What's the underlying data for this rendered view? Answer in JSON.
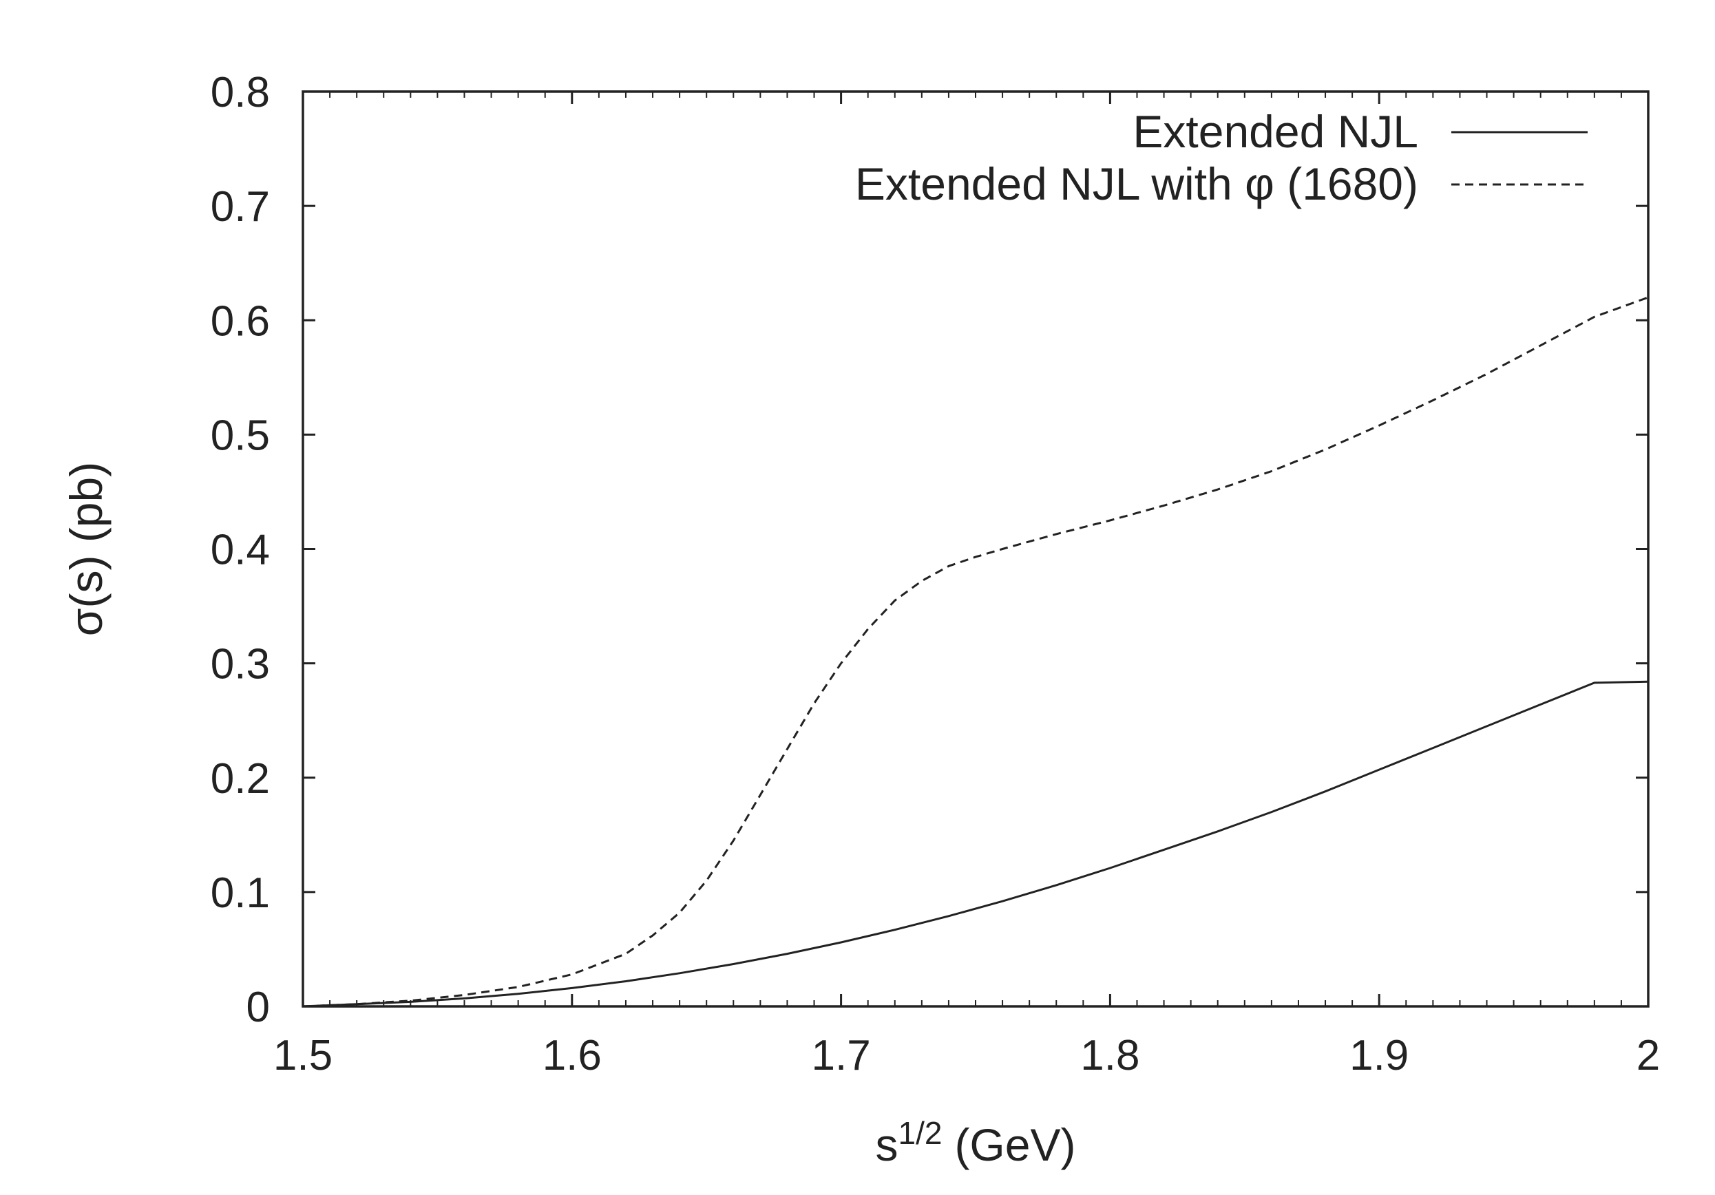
{
  "chart_data": {
    "type": "line",
    "title": "",
    "xlabel": "s",
    "xlabel_sup": "1/2",
    "xlabel_unit": "(GeV)",
    "ylabel": "σ(s) (pb)",
    "xlim": [
      1.5,
      2.0
    ],
    "ylim": [
      0,
      0.8
    ],
    "x_ticks": [
      1.5,
      1.6,
      1.7,
      1.8,
      1.9,
      2.0
    ],
    "x_tick_labels": [
      "1.5",
      "1.6",
      "1.7",
      "1.8",
      "1.9",
      "2"
    ],
    "y_ticks": [
      0,
      0.1,
      0.2,
      0.3,
      0.4,
      0.5,
      0.6,
      0.7,
      0.8
    ],
    "y_tick_labels": [
      "0",
      "0.1",
      "0.2",
      "0.3",
      "0.4",
      "0.5",
      "0.6",
      "0.7",
      "0.8"
    ],
    "grid": false,
    "legend_position": "top-right",
    "series": [
      {
        "name": "Extended NJL",
        "style": "solid",
        "x": [
          1.5,
          1.52,
          1.54,
          1.56,
          1.58,
          1.6,
          1.62,
          1.64,
          1.66,
          1.68,
          1.7,
          1.72,
          1.74,
          1.76,
          1.78,
          1.8,
          1.82,
          1.84,
          1.86,
          1.88,
          1.9,
          1.92,
          1.94,
          1.96,
          1.98,
          2.0
        ],
        "y": [
          0.0,
          0.002,
          0.004,
          0.007,
          0.011,
          0.016,
          0.022,
          0.029,
          0.037,
          0.046,
          0.056,
          0.067,
          0.079,
          0.092,
          0.106,
          0.121,
          0.137,
          0.153,
          0.17,
          0.188,
          0.207,
          0.226,
          0.245,
          0.264,
          0.283,
          0.284
        ]
      },
      {
        "name": "Extended NJL with φ (1680)",
        "style": "dashed",
        "x": [
          1.5,
          1.52,
          1.54,
          1.56,
          1.58,
          1.6,
          1.62,
          1.63,
          1.64,
          1.65,
          1.66,
          1.67,
          1.68,
          1.69,
          1.7,
          1.71,
          1.72,
          1.73,
          1.74,
          1.75,
          1.76,
          1.78,
          1.8,
          1.82,
          1.84,
          1.86,
          1.88,
          1.9,
          1.92,
          1.94,
          1.96,
          1.98,
          2.0
        ],
        "y": [
          0.0,
          0.002,
          0.005,
          0.01,
          0.017,
          0.028,
          0.046,
          0.062,
          0.082,
          0.11,
          0.145,
          0.185,
          0.225,
          0.265,
          0.3,
          0.33,
          0.355,
          0.372,
          0.385,
          0.393,
          0.4,
          0.413,
          0.425,
          0.438,
          0.452,
          0.468,
          0.487,
          0.508,
          0.53,
          0.553,
          0.578,
          0.603,
          0.62
        ]
      }
    ]
  }
}
